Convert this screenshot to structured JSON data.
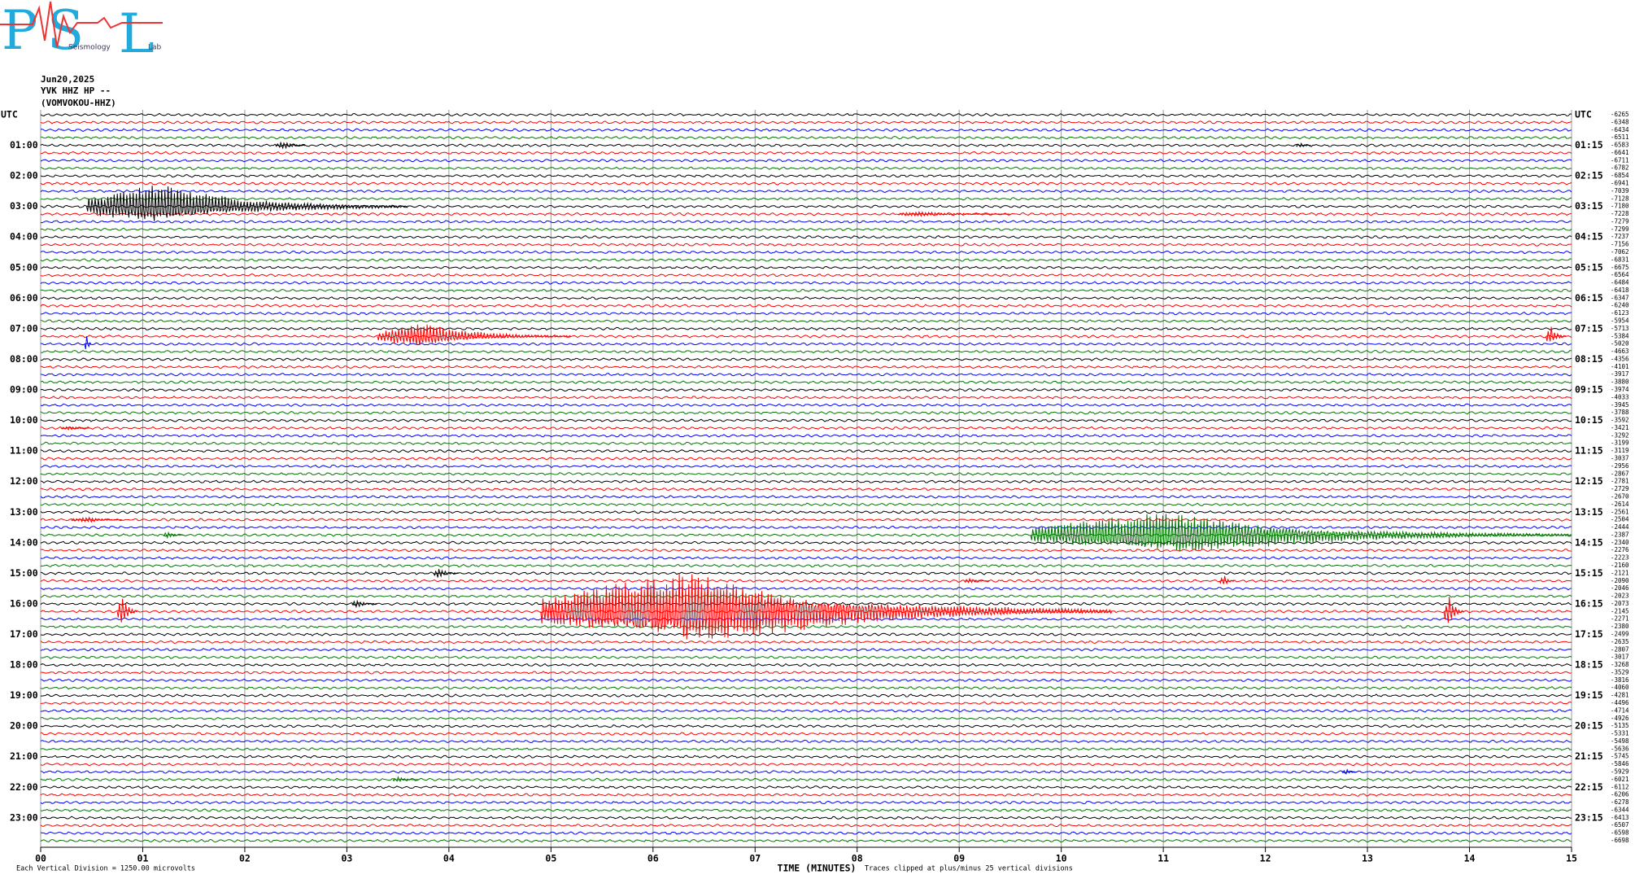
{
  "header": {
    "logo_letters": [
      "P",
      "S",
      "L"
    ],
    "logo_words": [
      "Seismology",
      "Lab"
    ],
    "lines": [
      "Jun20,2025",
      "YVK HHZ HP --",
      "(VOMVOKOU-HHZ)"
    ]
  },
  "chart_data": {
    "type": "helicorder",
    "trace_colors": [
      "#000000",
      "#ff0000",
      "#0000ff",
      "#007700"
    ],
    "left_labels": [
      "UTC",
      "01:00",
      "02:00",
      "03:00",
      "04:00",
      "05:00",
      "06:00",
      "07:00",
      "08:00",
      "09:00",
      "10:00",
      "11:00",
      "12:00",
      "13:00",
      "14:00",
      "15:00",
      "16:00",
      "17:00",
      "18:00",
      "19:00",
      "20:00",
      "21:00",
      "22:00",
      "23:00"
    ],
    "right_labels": [
      "UTC",
      "01:15",
      "02:15",
      "03:15",
      "04:15",
      "05:15",
      "06:15",
      "07:15",
      "08:15",
      "09:15",
      "10:15",
      "11:15",
      "12:15",
      "13:15",
      "14:15",
      "15:15",
      "16:15",
      "17:15",
      "18:15",
      "19:15",
      "20:15",
      "21:15",
      "22:15",
      "23:15"
    ],
    "trace_offsets": [
      -6265,
      -6348,
      -6434,
      -6511,
      -6583,
      -6641,
      -6711,
      -6782,
      -6854,
      -6941,
      -7039,
      -7128,
      -7180,
      -7228,
      -7279,
      -7299,
      -7237,
      -7156,
      -7062,
      -6831,
      -6675,
      -6564,
      -6484,
      -6418,
      -6347,
      -6240,
      -6123,
      -5954,
      -5713,
      -5384,
      -5020,
      -4663,
      -4356,
      -4101,
      -3917,
      -3880,
      -3974,
      -4033,
      -3945,
      -3788,
      -3592,
      -3421,
      -3292,
      -3199,
      -3119,
      -3037,
      -2956,
      -2867,
      -2781,
      -2729,
      -2670,
      -2614,
      -2561,
      -2504,
      -2444,
      -2387,
      -2340,
      -2276,
      -2223,
      -2160,
      -2121,
      -2090,
      -2046,
      -2023,
      -2073,
      -2145,
      -2271,
      -2380,
      -2499,
      -2635,
      -2807,
      -3017,
      -3268,
      -3529,
      -3816,
      -4060,
      -4281,
      -4496,
      -4714,
      -4926,
      -5135,
      -5331,
      -5498,
      -5636,
      -5745,
      -5846,
      -5929,
      -6021,
      -6112,
      -6206,
      -6278,
      -6344,
      -6413,
      -6507,
      -6598,
      -6698
    ],
    "xlim": [
      0,
      15
    ],
    "xticks": [
      {
        "value": 0,
        "label": "00"
      },
      {
        "value": 1,
        "label": "01"
      },
      {
        "value": 2,
        "label": "02"
      },
      {
        "value": 3,
        "label": "03"
      },
      {
        "value": 4,
        "label": "04"
      },
      {
        "value": 5,
        "label": "05"
      },
      {
        "value": 6,
        "label": "06"
      },
      {
        "value": 7,
        "label": "07"
      },
      {
        "value": 8,
        "label": "08"
      },
      {
        "value": 9,
        "label": "09"
      },
      {
        "value": 10,
        "label": "10"
      },
      {
        "value": 11,
        "label": "11"
      },
      {
        "value": 12,
        "label": "12"
      },
      {
        "value": 13,
        "label": "13"
      },
      {
        "value": 14,
        "label": "14"
      },
      {
        "value": 15,
        "label": "15"
      }
    ],
    "xlabel": "TIME (MINUTES)",
    "clip_note": "Traces clipped at plus/minus 25 vertical divisions",
    "scale_note": "Each Vertical Division = 1250.00 microvolts",
    "grid": true,
    "events": [
      {
        "trace": 4,
        "start": 2.3,
        "peak": 2.4,
        "end": 2.6,
        "amplitude": 0.6
      },
      {
        "trace": 4,
        "start": 12.3,
        "peak": 12.35,
        "end": 12.45,
        "amplitude": 0.4
      },
      {
        "trace": 12,
        "start": 0.45,
        "peak": 1.1,
        "end": 3.6,
        "amplitude": 3.2
      },
      {
        "trace": 13,
        "start": 8.4,
        "peak": 8.6,
        "end": 9.5,
        "amplitude": 0.4
      },
      {
        "trace": 29,
        "start": 3.3,
        "peak": 3.75,
        "end": 5.2,
        "amplitude": 1.8
      },
      {
        "trace": 29,
        "start": 14.75,
        "peak": 14.8,
        "end": 14.95,
        "amplitude": 1.5
      },
      {
        "trace": 30,
        "start": 0.43,
        "peak": 0.45,
        "end": 0.5,
        "amplitude": 1.5
      },
      {
        "trace": 41,
        "start": 0.2,
        "peak": 0.3,
        "end": 0.5,
        "amplitude": 0.3
      },
      {
        "trace": 53,
        "start": 0.3,
        "peak": 0.5,
        "end": 0.8,
        "amplitude": 0.4
      },
      {
        "trace": 55,
        "start": 9.7,
        "peak": 11.1,
        "end": 15,
        "amplitude": 3.2
      },
      {
        "trace": 55,
        "start": 1.2,
        "peak": 1.25,
        "end": 1.4,
        "amplitude": 0.5
      },
      {
        "trace": 60,
        "start": 3.85,
        "peak": 3.9,
        "end": 4.1,
        "amplitude": 0.8
      },
      {
        "trace": 61,
        "start": 9.05,
        "peak": 9.1,
        "end": 9.3,
        "amplitude": 0.4
      },
      {
        "trace": 61,
        "start": 11.55,
        "peak": 11.6,
        "end": 11.7,
        "amplitude": 0.9
      },
      {
        "trace": 64,
        "start": 3.05,
        "peak": 3.1,
        "end": 3.3,
        "amplitude": 0.6
      },
      {
        "trace": 65,
        "start": 4.9,
        "peak": 6.4,
        "end": 10.5,
        "amplitude": 5.5
      },
      {
        "trace": 65,
        "start": 0.75,
        "peak": 0.8,
        "end": 0.95,
        "amplitude": 2.5
      },
      {
        "trace": 65,
        "start": 13.75,
        "peak": 13.8,
        "end": 13.95,
        "amplitude": 2.5
      },
      {
        "trace": 86,
        "start": 12.75,
        "peak": 12.8,
        "end": 12.9,
        "amplitude": 0.4
      },
      {
        "trace": 87,
        "start": 3.45,
        "peak": 3.5,
        "end": 3.7,
        "amplitude": 0.4
      }
    ]
  }
}
